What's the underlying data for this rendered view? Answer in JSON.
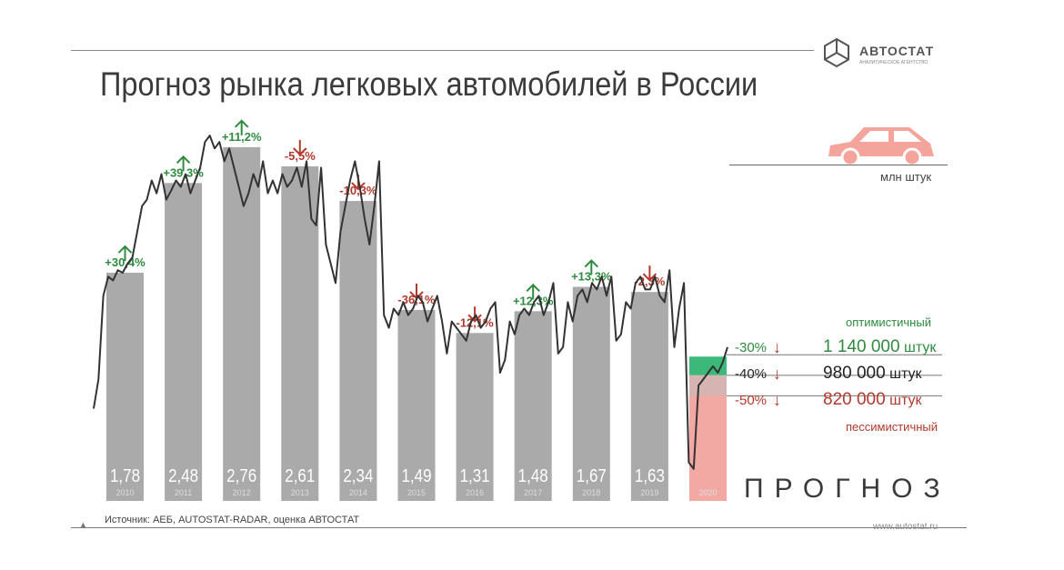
{
  "title": "Прогноз рынка легковых автомобилей в России",
  "unit": "млн штук",
  "logo": {
    "name": "АВТОСТАТ",
    "tagline": "АНАЛИТИЧЕСКОЕ АГЕНТСТВО"
  },
  "forecast_label": "ПРОГНОЗ",
  "source": "Источник: АЕБ, AUTOSTAT-RADAR, оценка АВТОСТАТ",
  "site": "www.autostat.ru",
  "colors": {
    "bar": "#aaaaaa",
    "forecast_bar": "#f2a9a4",
    "up": "#2e8b3f",
    "down": "#b23a2c",
    "green_band": "#3cb878",
    "line": "#333333"
  },
  "chart_data": {
    "type": "bar",
    "categories": [
      "2010",
      "2011",
      "2012",
      "2013",
      "2014",
      "2015",
      "2016",
      "2017",
      "2018",
      "2019",
      "2020"
    ],
    "values": [
      1.78,
      2.48,
      2.76,
      2.61,
      2.34,
      1.49,
      1.31,
      1.48,
      1.67,
      1.63,
      null
    ],
    "labels": [
      "1,78",
      "2,48",
      "2,76",
      "2,61",
      "2,34",
      "1,49",
      "1,31",
      "1,48",
      "1,67",
      "1,63",
      ""
    ],
    "changes": [
      "+30,4%",
      "+39,3%",
      "+11,2%",
      "-5,5%",
      "-10,3%",
      "-36,1%",
      "-12,1%",
      "+12,3%",
      "+13,3%",
      "-2,3%",
      ""
    ],
    "directions": [
      "up",
      "up",
      "up",
      "down",
      "down",
      "down",
      "down",
      "up",
      "up",
      "down",
      ""
    ],
    "ylim": [
      0,
      3.2
    ],
    "scenarios": [
      {
        "change": "-30%",
        "value": "1 140 000",
        "unit": "штук",
        "name": "оптимистичный",
        "v": 1.14,
        "color": "up"
      },
      {
        "change": "-40%",
        "value": "980 000",
        "unit": "штук",
        "name": "",
        "v": 0.98,
        "color": "neutral"
      },
      {
        "change": "-50%",
        "value": "820 000",
        "unit": "штук",
        "name": "пессимистичный",
        "v": 0.82,
        "color": "down"
      }
    ],
    "monthly_line": [
      0.72,
      0.95,
      1.6,
      1.75,
      1.72,
      1.8,
      1.78,
      1.85,
      1.9,
      2.1,
      2.3,
      2.35,
      2.5,
      2.4,
      2.55,
      2.35,
      2.42,
      2.5,
      2.45,
      2.55,
      2.4,
      2.5,
      2.6,
      2.8,
      2.85,
      2.75,
      2.8,
      2.65,
      2.75,
      2.6,
      2.45,
      2.3,
      2.4,
      2.55,
      2.45,
      2.65,
      2.4,
      2.5,
      2.4,
      2.55,
      2.45,
      2.5,
      2.6,
      2.45,
      2.65,
      2.2,
      2.15,
      2.6,
      2.0,
      1.85,
      1.7,
      2.1,
      2.3,
      2.5,
      2.65,
      2.45,
      2.2,
      2.0,
      2.3,
      2.65,
      1.45,
      1.35,
      1.5,
      1.45,
      1.55,
      1.45,
      1.5,
      1.6,
      1.55,
      1.4,
      1.5,
      1.6,
      1.4,
      1.15,
      1.4,
      1.35,
      1.3,
      1.25,
      1.4,
      1.45,
      1.35,
      1.4,
      1.5,
      1.55,
      1.0,
      1.1,
      1.4,
      1.3,
      1.45,
      1.5,
      1.45,
      1.55,
      1.6,
      1.45,
      1.55,
      1.7,
      1.15,
      1.2,
      1.55,
      1.4,
      1.6,
      1.65,
      1.55,
      1.7,
      1.65,
      1.75,
      1.6,
      1.75,
      1.25,
      1.3,
      1.55,
      1.5,
      1.7,
      1.75,
      1.65,
      1.65,
      1.75,
      1.6,
      1.55,
      1.8,
      1.2,
      1.5,
      1.7,
      0.3,
      0.25,
      0.9,
      0.95,
      1.0,
      1.05,
      1.0,
      1.08,
      1.2
    ]
  }
}
